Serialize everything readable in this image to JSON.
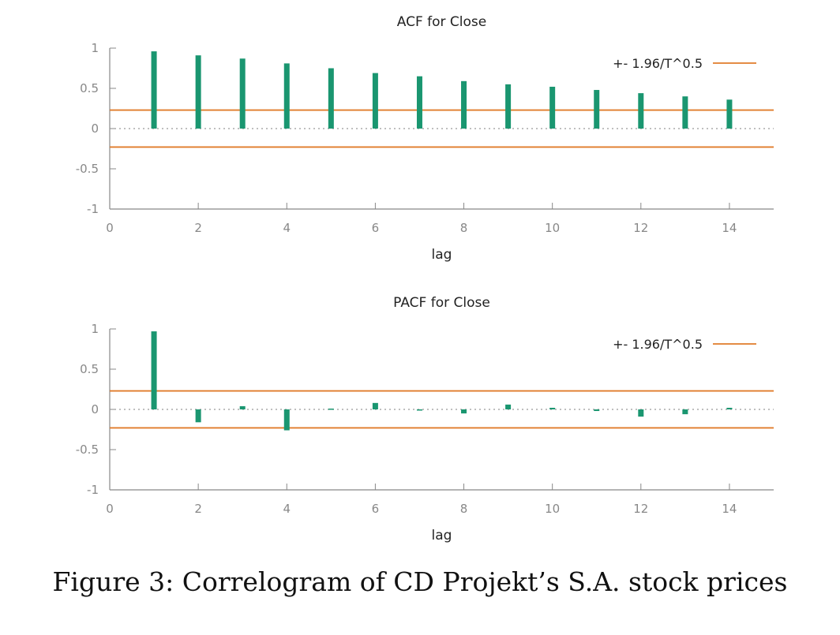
{
  "chart_data": [
    {
      "type": "bar",
      "title": "ACF for Close",
      "xlabel": "lag",
      "ylabel": "",
      "xlim": [
        0,
        15
      ],
      "ylim": [
        -1,
        1
      ],
      "x_ticks": [
        "0",
        "2",
        "4",
        "6",
        "8",
        "10",
        "12",
        "14"
      ],
      "y_ticks": [
        "1",
        "0.5",
        "0",
        "-0.5",
        "-1"
      ],
      "x": [
        1,
        2,
        3,
        4,
        5,
        6,
        7,
        8,
        9,
        10,
        11,
        12,
        13,
        14
      ],
      "values": [
        0.96,
        0.91,
        0.87,
        0.81,
        0.75,
        0.69,
        0.65,
        0.59,
        0.55,
        0.52,
        0.48,
        0.44,
        0.4,
        0.36
      ],
      "band": 0.23,
      "legend": {
        "label": "+- 1.96/T^0.5",
        "position": "top-right"
      },
      "colors": {
        "bars": "#1a9670",
        "band": "#e07b2a",
        "axis": "#888888",
        "zero": "#999999"
      }
    },
    {
      "type": "bar",
      "title": "PACF for Close",
      "xlabel": "lag",
      "ylabel": "",
      "xlim": [
        0,
        15
      ],
      "ylim": [
        -1,
        1
      ],
      "x_ticks": [
        "0",
        "2",
        "4",
        "6",
        "8",
        "10",
        "12",
        "14"
      ],
      "y_ticks": [
        "1",
        "0.5",
        "0",
        "-0.5",
        "-1"
      ],
      "x": [
        1,
        2,
        3,
        4,
        5,
        6,
        7,
        8,
        9,
        10,
        11,
        12,
        13,
        14
      ],
      "values": [
        0.97,
        -0.16,
        0.04,
        -0.26,
        0.01,
        0.08,
        0.0,
        -0.05,
        0.06,
        0.02,
        -0.02,
        -0.09,
        -0.06,
        0.02
      ],
      "band": 0.23,
      "legend": {
        "label": "+- 1.96/T^0.5",
        "position": "top-right"
      },
      "colors": {
        "bars": "#1a9670",
        "band": "#e07b2a",
        "axis": "#888888",
        "zero": "#999999"
      }
    }
  ],
  "caption": "Figure 3: Correlogram of CD Projekt’s S.A. stock prices"
}
